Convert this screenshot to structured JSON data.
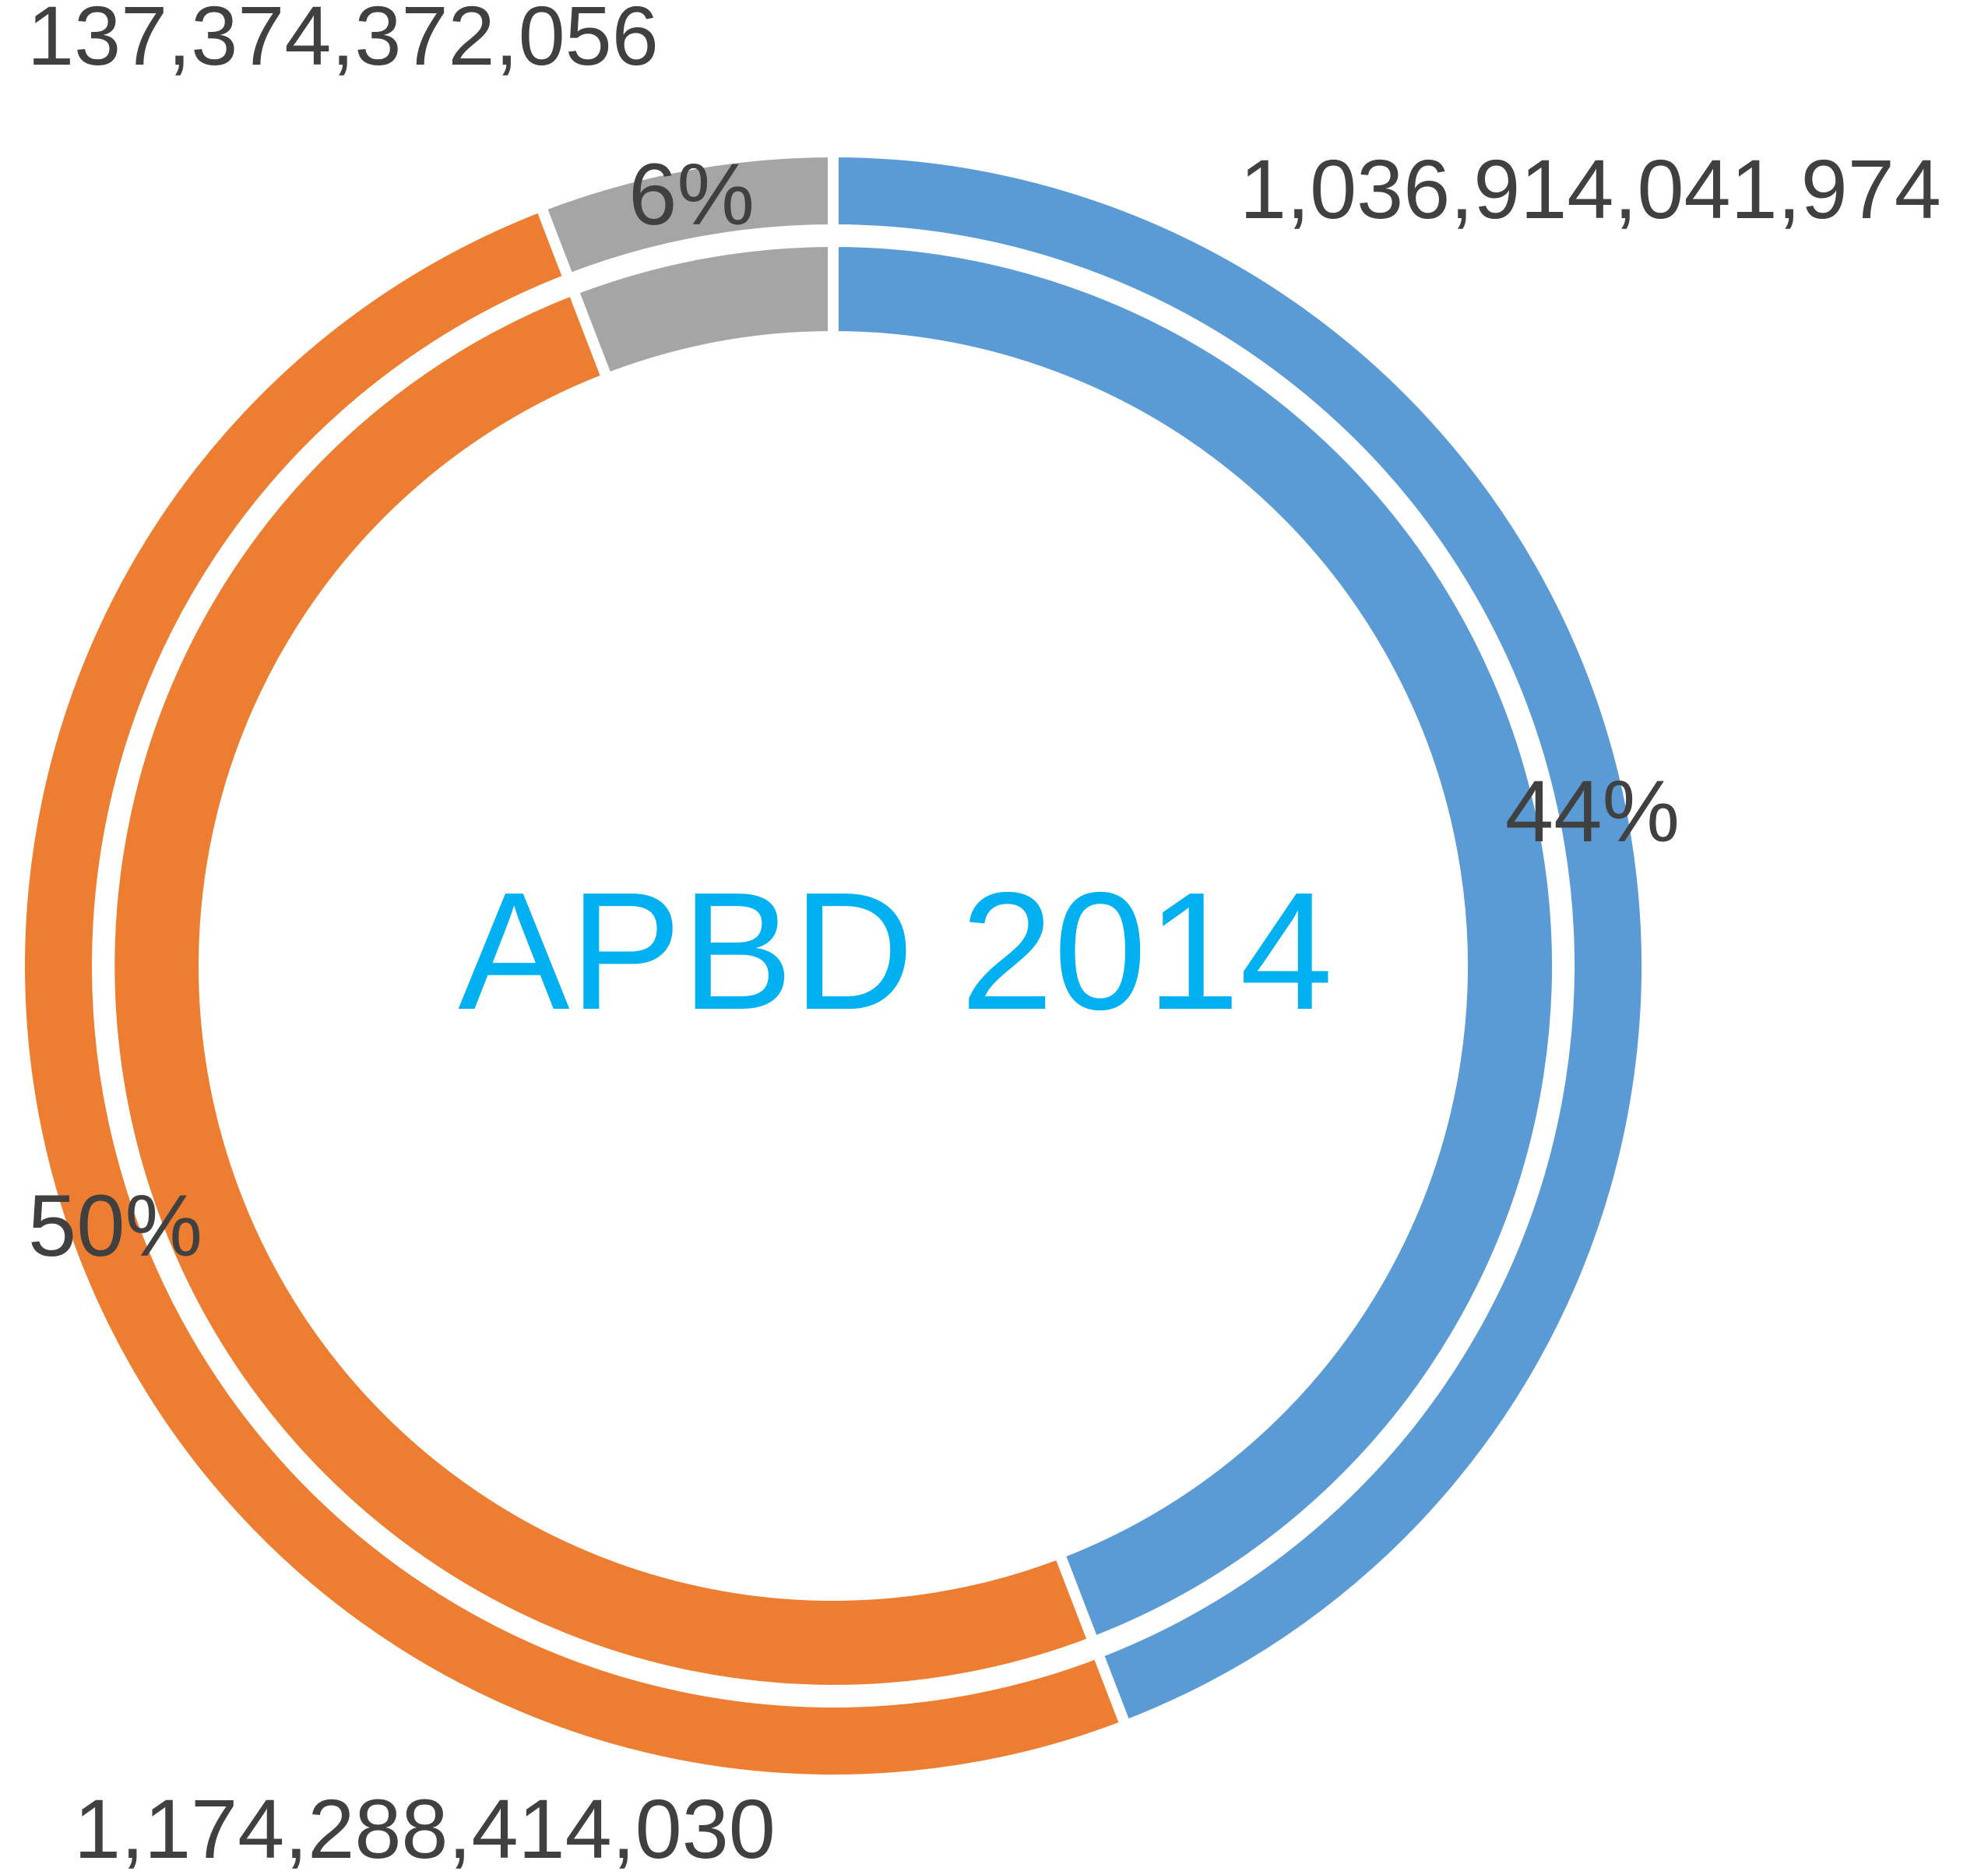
{
  "chart_data": {
    "type": "doughnut",
    "title": "APBD 2014",
    "title_color": "#00B0F0",
    "label_color": "#404040",
    "series": [
      {
        "name": "",
        "values": [
          1036914041974,
          1174288414030,
          137374372056
        ],
        "percent_labels": [
          "44%",
          "50%",
          "6%"
        ],
        "value_labels": [
          "1,036,914,041,974",
          "1,174,288,414,030",
          "137,374,372,056"
        ],
        "colors": [
          "#5B9BD5",
          "#ED7D31",
          "#A5A5A5"
        ]
      },
      {
        "name": "",
        "values": [
          1036914041974,
          1174288414030,
          137374372056
        ],
        "colors": [
          "#5B9BD5",
          "#ED7D31",
          "#A5A5A5"
        ]
      }
    ],
    "grid": false,
    "legend": "none"
  }
}
